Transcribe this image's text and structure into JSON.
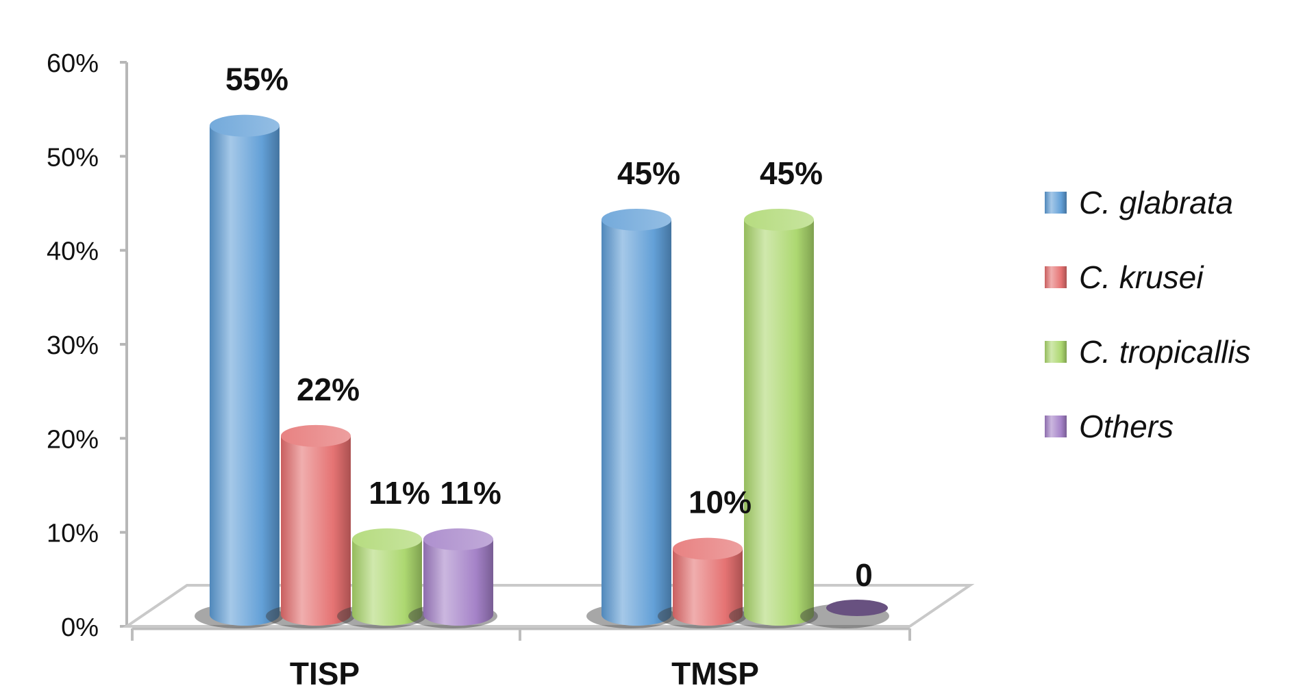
{
  "chart_data": {
    "type": "bar",
    "categories": [
      "TISP",
      "TMSP"
    ],
    "series": [
      {
        "name": "C. glabrata",
        "values": [
          55,
          45
        ],
        "labels": [
          "55%",
          "45%"
        ]
      },
      {
        "name": "C. krusei",
        "values": [
          22,
          10
        ],
        "labels": [
          "22%",
          "10%"
        ]
      },
      {
        "name": "C. tropicallis",
        "values": [
          11,
          45
        ],
        "labels": [
          "11%",
          "45%"
        ]
      },
      {
        "name": "Others",
        "values": [
          11,
          0
        ],
        "labels": [
          "11%",
          "0"
        ]
      }
    ],
    "yticks": [
      "0%",
      "10%",
      "20%",
      "30%",
      "40%",
      "50%",
      "60%"
    ],
    "ylim": [
      0,
      60
    ],
    "title": "",
    "xlabel": "",
    "ylabel": "",
    "legend": "right",
    "grid": false,
    "colors": [
      "#5b9bd5",
      "#e46c6c",
      "#a9d66a",
      "#a07cc5"
    ]
  }
}
